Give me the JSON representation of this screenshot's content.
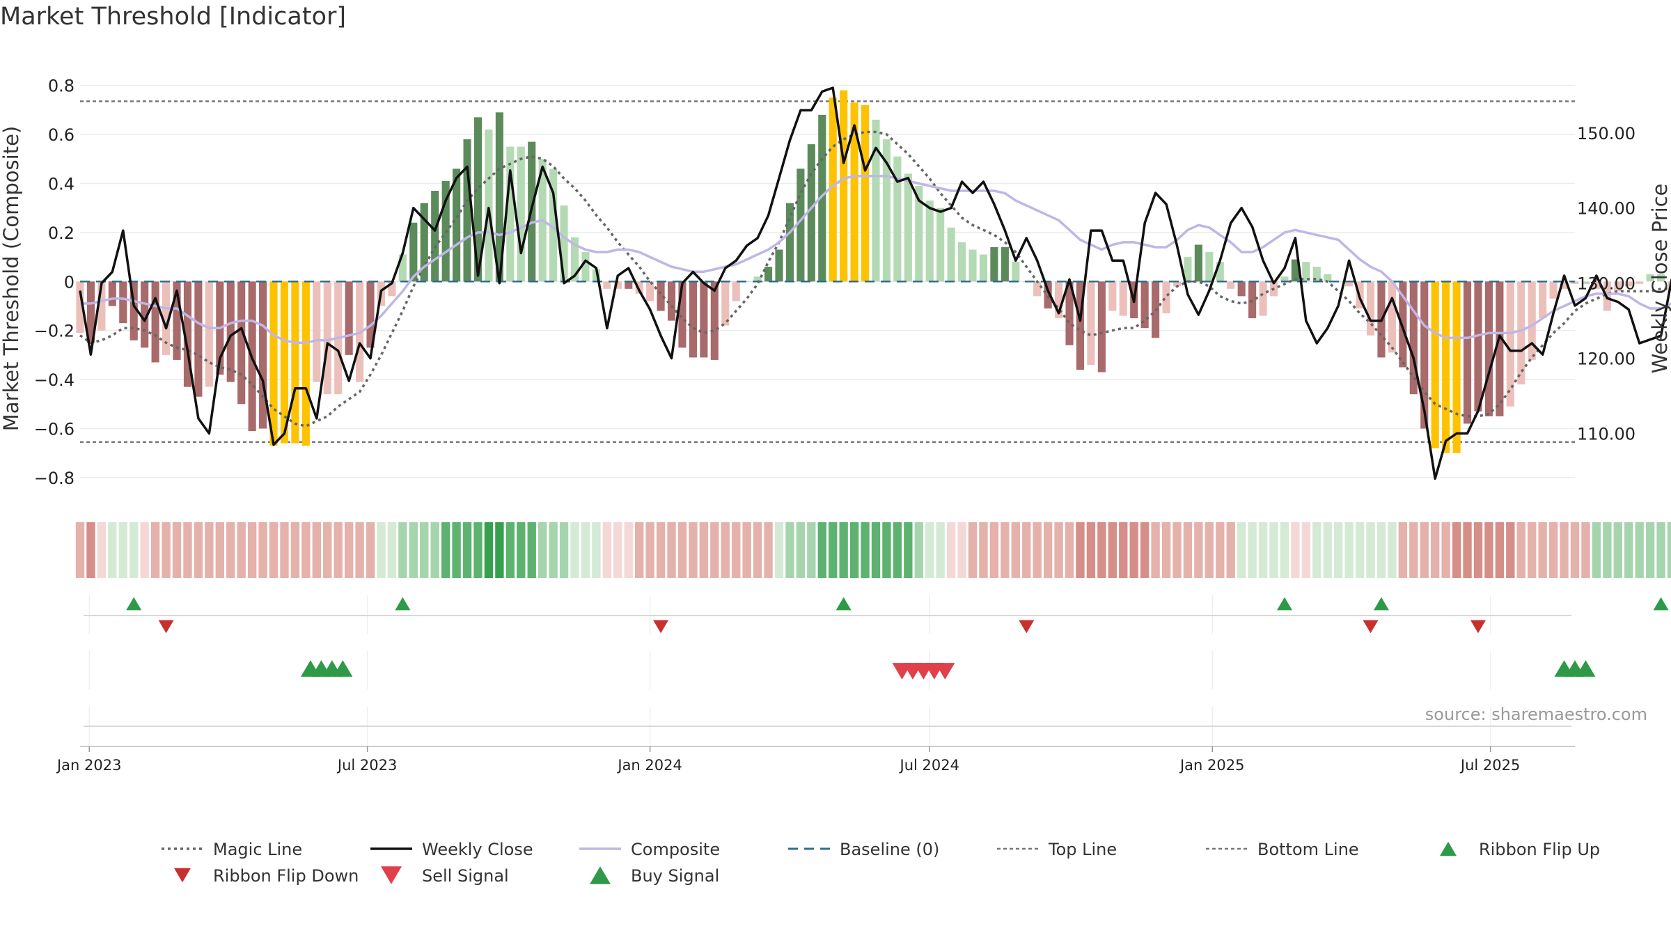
{
  "title": "Market Threshold [Indicator]",
  "source": "source: sharemaestro.com",
  "colors": {
    "strong_pos": "#5b8a5b",
    "weak_pos": "#b4dab4",
    "strong_neg": "#a86a6a",
    "weak_neg": "#ecc0ba",
    "extreme": "#ffc200",
    "close": "#111111",
    "composite": "#c0b6e6",
    "magic": "#666666",
    "baseline": "#2a6f8f",
    "threshold": "#777777",
    "flip_up": "#2e9a48",
    "flip_down": "#c83030",
    "sell": "#e0404a",
    "buy": "#2e9a48"
  },
  "chart_data": {
    "type": "bar",
    "title": "Market Threshold [Indicator]",
    "ylabel": "Market Threshold (Composite)",
    "y2label": "Weekly Close Price",
    "ylim": [
      -0.86,
      0.87
    ],
    "y2lim": [
      102.17,
      158.6
    ],
    "yticks": [
      {
        "v": 0.8,
        "label": "0.8"
      },
      {
        "v": 0.6,
        "label": "0.6"
      },
      {
        "v": 0.4,
        "label": "0.4"
      },
      {
        "v": 0.2,
        "label": "0.2"
      },
      {
        "v": 0,
        "label": "0"
      },
      {
        "v": -0.2,
        "label": "−0.2"
      },
      {
        "v": -0.4,
        "label": "−0.4"
      },
      {
        "v": -0.6,
        "label": "−0.6"
      },
      {
        "v": -0.8,
        "label": "−0.8"
      }
    ],
    "y2ticks": [
      {
        "v": 150,
        "label": "150.00"
      },
      {
        "v": 140,
        "label": "140.00"
      },
      {
        "v": 130,
        "label": "130.00"
      },
      {
        "v": 120,
        "label": "120.00"
      },
      {
        "v": 110,
        "label": "110.00"
      }
    ],
    "x_start": "2022-12-26",
    "x_end": "2025-08-25",
    "xticks": [
      {
        "date": "2023-01-01",
        "label": "Jan 2023"
      },
      {
        "date": "2023-07-01",
        "label": "Jul 2023"
      },
      {
        "date": "2024-01-01",
        "label": "Jan 2024"
      },
      {
        "date": "2024-07-01",
        "label": "Jul 2024"
      },
      {
        "date": "2025-01-01",
        "label": "Jan 2025"
      },
      {
        "date": "2025-07-01",
        "label": "Jul 2025"
      }
    ],
    "top_line": 0.735,
    "bottom_line": -0.655,
    "composite_bars": [
      -0.21,
      -0.25,
      -0.2,
      -0.1,
      -0.17,
      -0.24,
      -0.27,
      -0.33,
      -0.3,
      -0.32,
      -0.43,
      -0.47,
      -0.43,
      -0.38,
      -0.41,
      -0.5,
      -0.61,
      -0.6,
      -0.67,
      -0.66,
      -0.66,
      -0.67,
      -0.41,
      -0.46,
      -0.46,
      -0.3,
      -0.41,
      -0.27,
      -0.1,
      -0.06,
      0.11,
      0.24,
      0.32,
      0.37,
      0.41,
      0.46,
      0.58,
      0.67,
      0.62,
      0.69,
      0.55,
      0.55,
      0.57,
      0.5,
      0.46,
      0.31,
      0.18,
      0.12,
      0.05,
      -0.03,
      -0.03,
      -0.03,
      -0.05,
      -0.08,
      -0.12,
      -0.16,
      -0.27,
      -0.31,
      -0.31,
      -0.32,
      -0.18,
      -0.08,
      0.0,
      0.02,
      0.06,
      0.13,
      0.32,
      0.46,
      0.56,
      0.68,
      0.75,
      0.78,
      0.73,
      0.72,
      0.66,
      0.58,
      0.51,
      0.44,
      0.39,
      0.33,
      0.3,
      0.22,
      0.16,
      0.13,
      0.11,
      0.14,
      0.14,
      0.08,
      0.0,
      -0.06,
      -0.11,
      -0.15,
      -0.26,
      -0.36,
      -0.34,
      -0.37,
      -0.12,
      -0.14,
      -0.15,
      -0.19,
      -0.23,
      -0.13,
      -0.02,
      0.1,
      0.15,
      0.12,
      0.08,
      -0.03,
      -0.06,
      -0.15,
      -0.14,
      -0.06,
      0.02,
      0.09,
      0.08,
      0.06,
      0.03,
      0.0,
      -0.02,
      -0.11,
      -0.22,
      -0.31,
      -0.29,
      -0.35,
      -0.46,
      -0.6,
      -0.68,
      -0.7,
      -0.7,
      -0.58,
      -0.53,
      -0.55,
      -0.55,
      -0.51,
      -0.42,
      -0.32,
      -0.15,
      -0.07,
      -0.03,
      -0.01,
      -0.01,
      -0.03,
      -0.12,
      -0.04,
      -0.02,
      -0.01,
      0.03,
      0.03,
      -0.04,
      -0.1,
      -0.15,
      -0.12,
      -0.15,
      -0.03,
      -0.1,
      -0.12,
      -0.14,
      -0.18
    ],
    "bar_classes": [
      "wn",
      "sn",
      "wn",
      "sn",
      "sn",
      "sn",
      "sn",
      "sn",
      "wn",
      "sn",
      "sn",
      "sn",
      "wn",
      "sn",
      "sn",
      "sn",
      "sn",
      "sn",
      "ex",
      "ex",
      "ex",
      "ex",
      "wn",
      "wn",
      "wn",
      "sn",
      "wn",
      "sn",
      "wn",
      "wn",
      "wp",
      "sp",
      "sp",
      "sp",
      "sp",
      "sp",
      "sp",
      "sp",
      "wp",
      "sp",
      "wp",
      "wp",
      "sp",
      "wp",
      "wp",
      "wp",
      "wp",
      "wp",
      "wp",
      "wn",
      "wn",
      "sn",
      "wn",
      "wn",
      "sn",
      "sn",
      "sn",
      "sn",
      "sn",
      "sn",
      "wn",
      "wn",
      "wp",
      "wp",
      "sp",
      "sp",
      "sp",
      "sp",
      "sp",
      "sp",
      "ex",
      "ex",
      "ex",
      "ex",
      "wp",
      "wp",
      "wp",
      "wp",
      "wp",
      "wp",
      "wp",
      "wp",
      "wp",
      "wp",
      "wp",
      "sp",
      "sp",
      "wp",
      "wp",
      "wn",
      "sn",
      "wn",
      "sn",
      "sn",
      "wn",
      "sn",
      "wn",
      "wn",
      "sn",
      "sn",
      "sn",
      "wn",
      "wn",
      "wp",
      "sp",
      "wp",
      "wp",
      "wn",
      "sn",
      "sn",
      "wn",
      "wn",
      "wp",
      "sp",
      "wp",
      "wp",
      "wp",
      "wp",
      "wn",
      "wn",
      "wn",
      "sn",
      "wn",
      "sn",
      "sn",
      "sn",
      "ex",
      "ex",
      "ex",
      "sn",
      "sn",
      "sn",
      "sn",
      "wn",
      "wn",
      "wn",
      "wn",
      "wn",
      "wn",
      "wn",
      "wp",
      "wn",
      "wn",
      "wn",
      "wn",
      "wn",
      "wp",
      "wp",
      "wn",
      "wn",
      "sn",
      "wn",
      "wn",
      "wn",
      "sn",
      "sn",
      "sn",
      "sn"
    ],
    "composite_line": [
      -0.09,
      -0.09,
      -0.08,
      -0.07,
      -0.07,
      -0.08,
      -0.09,
      -0.1,
      -0.11,
      -0.11,
      -0.14,
      -0.17,
      -0.19,
      -0.19,
      -0.17,
      -0.16,
      -0.16,
      -0.18,
      -0.22,
      -0.24,
      -0.25,
      -0.25,
      -0.24,
      -0.24,
      -0.23,
      -0.22,
      -0.21,
      -0.18,
      -0.14,
      -0.09,
      -0.04,
      0.02,
      0.06,
      0.09,
      0.12,
      0.15,
      0.18,
      0.2,
      0.2,
      0.19,
      0.2,
      0.22,
      0.24,
      0.25,
      0.22,
      0.18,
      0.15,
      0.13,
      0.12,
      0.12,
      0.13,
      0.13,
      0.12,
      0.1,
      0.08,
      0.06,
      0.05,
      0.04,
      0.04,
      0.05,
      0.06,
      0.07,
      0.09,
      0.11,
      0.13,
      0.16,
      0.2,
      0.25,
      0.3,
      0.35,
      0.39,
      0.42,
      0.43,
      0.43,
      0.43,
      0.43,
      0.42,
      0.41,
      0.4,
      0.39,
      0.38,
      0.37,
      0.37,
      0.37,
      0.37,
      0.37,
      0.36,
      0.33,
      0.31,
      0.29,
      0.27,
      0.25,
      0.21,
      0.17,
      0.15,
      0.13,
      0.15,
      0.16,
      0.16,
      0.15,
      0.14,
      0.14,
      0.17,
      0.21,
      0.23,
      0.22,
      0.19,
      0.16,
      0.12,
      0.12,
      0.14,
      0.17,
      0.2,
      0.21,
      0.2,
      0.19,
      0.18,
      0.17,
      0.13,
      0.09,
      0.06,
      0.04,
      0.0,
      -0.06,
      -0.12,
      -0.18,
      -0.21,
      -0.23,
      -0.23,
      -0.23,
      -0.22,
      -0.21,
      -0.21,
      -0.21,
      -0.2,
      -0.18,
      -0.15,
      -0.12,
      -0.1,
      -0.08,
      -0.06,
      -0.05,
      -0.05,
      -0.05,
      -0.06,
      -0.09,
      -0.11,
      -0.11,
      -0.09,
      -0.06,
      -0.04,
      -0.03,
      -0.02,
      -0.02,
      -0.03,
      -0.03,
      -0.03,
      -0.03
    ],
    "magic_line": [
      -0.22,
      -0.25,
      -0.24,
      -0.22,
      -0.19,
      -0.19,
      -0.2,
      -0.22,
      -0.25,
      -0.27,
      -0.28,
      -0.3,
      -0.33,
      -0.35,
      -0.36,
      -0.38,
      -0.42,
      -0.47,
      -0.52,
      -0.55,
      -0.58,
      -0.59,
      -0.57,
      -0.55,
      -0.51,
      -0.48,
      -0.45,
      -0.38,
      -0.3,
      -0.21,
      -0.12,
      -0.02,
      0.06,
      0.14,
      0.2,
      0.26,
      0.33,
      0.38,
      0.42,
      0.46,
      0.48,
      0.5,
      0.51,
      0.5,
      0.47,
      0.42,
      0.38,
      0.33,
      0.27,
      0.22,
      0.16,
      0.11,
      0.06,
      0.0,
      -0.05,
      -0.1,
      -0.15,
      -0.19,
      -0.21,
      -0.2,
      -0.17,
      -0.12,
      -0.07,
      -0.01,
      0.08,
      0.16,
      0.26,
      0.36,
      0.44,
      0.5,
      0.55,
      0.58,
      0.6,
      0.61,
      0.61,
      0.6,
      0.56,
      0.52,
      0.47,
      0.42,
      0.36,
      0.31,
      0.26,
      0.23,
      0.21,
      0.19,
      0.16,
      0.12,
      0.06,
      0.0,
      -0.06,
      -0.11,
      -0.17,
      -0.2,
      -0.22,
      -0.21,
      -0.2,
      -0.19,
      -0.19,
      -0.16,
      -0.12,
      -0.06,
      -0.02,
      0.0,
      0.0,
      -0.02,
      -0.06,
      -0.08,
      -0.09,
      -0.08,
      -0.05,
      -0.03,
      -0.01,
      0.01,
      0.01,
      0.01,
      0.0,
      -0.04,
      -0.08,
      -0.13,
      -0.17,
      -0.22,
      -0.27,
      -0.33,
      -0.39,
      -0.45,
      -0.5,
      -0.52,
      -0.54,
      -0.55,
      -0.55,
      -0.54,
      -0.5,
      -0.44,
      -0.37,
      -0.31,
      -0.26,
      -0.21,
      -0.17,
      -0.12,
      -0.09,
      -0.07,
      -0.05,
      -0.04,
      -0.04,
      -0.04,
      -0.04,
      -0.03,
      -0.03,
      -0.03,
      -0.02,
      -0.02,
      -0.03,
      -0.03,
      -0.04,
      -0.05,
      -0.06,
      -0.06
    ],
    "weekly_close": [
      129,
      120.5,
      130,
      131.5,
      137,
      127,
      125,
      128,
      124,
      129,
      121,
      112,
      110,
      120,
      123,
      124,
      120,
      117,
      108.5,
      110,
      116,
      116,
      112,
      122,
      121,
      117,
      122,
      120,
      129,
      130,
      134,
      140,
      138.5,
      137,
      141,
      144,
      145.5,
      131,
      140,
      130,
      145,
      134,
      140,
      145.5,
      142,
      130,
      131,
      133,
      132,
      124,
      131,
      132,
      129,
      126.5,
      123,
      120,
      130,
      131.5,
      130,
      129,
      132,
      133,
      135,
      136,
      139,
      144,
      149,
      153,
      153,
      155.5,
      156,
      146,
      151,
      145,
      148,
      146,
      143.5,
      144,
      141,
      140,
      139.5,
      140,
      143.5,
      142,
      143.5,
      140.5,
      137,
      133,
      136,
      133,
      129,
      126,
      130.5,
      125,
      137,
      137,
      133,
      133,
      127.5,
      138,
      142,
      140.5,
      135,
      128.5,
      125.8,
      129,
      133,
      138,
      140,
      137.5,
      133,
      130,
      132,
      136,
      125,
      122,
      124,
      127,
      133,
      128,
      125,
      125,
      128,
      124,
      120,
      113,
      104,
      109,
      110,
      110,
      113,
      118,
      123,
      121,
      121,
      122,
      120.5,
      126,
      131,
      127,
      128,
      131,
      128,
      127.5,
      126.5,
      122,
      122.5,
      123,
      130.5,
      131,
      129,
      129.5,
      129.5
    ],
    "ribbon_classes": [
      "n2",
      "n3",
      "n1",
      "p1",
      "p1",
      "p1",
      "n1",
      "n2",
      "n2",
      "n2",
      "n2",
      "n2",
      "n2",
      "n2",
      "n2",
      "n2",
      "n2",
      "n2",
      "n2",
      "n2",
      "n2",
      "n2",
      "n2",
      "n2",
      "n2",
      "n2",
      "n2",
      "n2",
      "p1",
      "p1",
      "p2",
      "p2",
      "p2",
      "p2",
      "p3",
      "p3",
      "p3",
      "p3",
      "p4",
      "p4",
      "p3",
      "p3",
      "p3",
      "p2",
      "p2",
      "p2",
      "p1",
      "p1",
      "p1",
      "n1",
      "n1",
      "n1",
      "n2",
      "n2",
      "n2",
      "n2",
      "n2",
      "n2",
      "n2",
      "n2",
      "n2",
      "n2",
      "n2",
      "n2",
      "n2",
      "p1",
      "p2",
      "p2",
      "p2",
      "p3",
      "p3",
      "p3",
      "p3",
      "p3",
      "p3",
      "p3",
      "p3",
      "p3",
      "p2",
      "p1",
      "p1",
      "n1",
      "n1",
      "n2",
      "n2",
      "n2",
      "n2",
      "n2",
      "n2",
      "n2",
      "n2",
      "n2",
      "n2",
      "n3",
      "n3",
      "n3",
      "n3",
      "n3",
      "n3",
      "n3",
      "n2",
      "n2",
      "n2",
      "n2",
      "n2",
      "n2",
      "n2",
      "n2",
      "p1",
      "p1",
      "p1",
      "p1",
      "p1",
      "n1",
      "n1",
      "p1",
      "p1",
      "p1",
      "p1",
      "p1",
      "p1",
      "p1",
      "p1",
      "n2",
      "n2",
      "n2",
      "n2",
      "n2",
      "n3",
      "n3",
      "n3",
      "n3",
      "n3",
      "n3",
      "n2",
      "n2",
      "n2",
      "n2",
      "n2",
      "n2",
      "n2",
      "p2",
      "p2",
      "p2",
      "p2",
      "p2",
      "p2",
      "p2",
      "p2",
      "p2",
      "p2",
      "p1",
      "p1",
      "p1",
      "p1",
      "p1",
      "p1",
      "p1",
      "p1"
    ],
    "ribbon_flip_up": [
      5,
      30,
      71,
      112,
      121,
      147
    ],
    "ribbon_flip_down": [
      8,
      54,
      88,
      120,
      130
    ],
    "buy_signals": [
      21.5,
      22.5,
      23.5,
      24.5,
      138,
      139,
      140
    ],
    "sell_signals": [
      76.5,
      77.5,
      78.5,
      79.5,
      80.5
    ],
    "legend": [
      {
        "label": "Magic Line",
        "kind": "dotted-line",
        "color_key": "magic"
      },
      {
        "label": "Weekly Close",
        "kind": "solid-line",
        "color_key": "close"
      },
      {
        "label": "Composite",
        "kind": "solid-line-light",
        "color_key": "composite"
      },
      {
        "label": "Baseline (0)",
        "kind": "dashed-line",
        "color_key": "baseline"
      },
      {
        "label": "Top Line",
        "kind": "fine-dashed-line",
        "color_key": "threshold"
      },
      {
        "label": "Bottom Line",
        "kind": "fine-dashed-line",
        "color_key": "threshold"
      },
      {
        "label": "Ribbon Flip Up",
        "kind": "triangle-up",
        "color_key": "flip_up"
      },
      {
        "label": "Ribbon Flip Down",
        "kind": "triangle-down",
        "color_key": "flip_down"
      },
      {
        "label": "Sell Signal",
        "kind": "triangle-down-large",
        "color_key": "sell"
      },
      {
        "label": "Buy Signal",
        "kind": "triangle-up-large",
        "color_key": "buy"
      }
    ]
  }
}
